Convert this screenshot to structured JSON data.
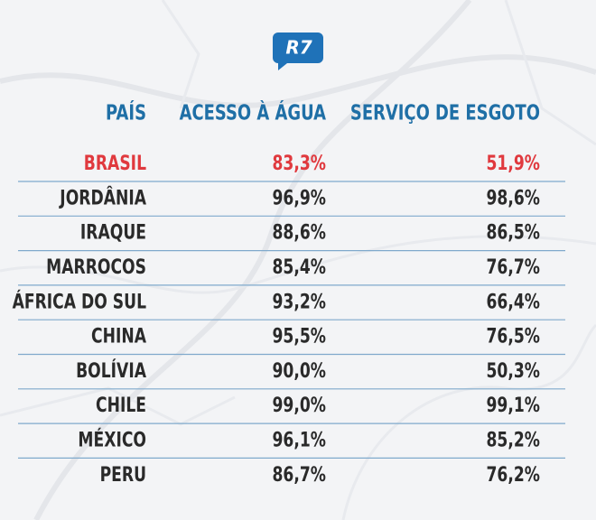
{
  "logo": "R7",
  "table": {
    "header": [
      "PAÍS",
      "ACESSO À ÁGUA",
      "SERVIÇO DE ESGOTO"
    ],
    "rows": [
      [
        "BRASIL",
        "83,3%",
        "51,9%"
      ],
      [
        "JORDÂNIA",
        "96,9%",
        "98,6%"
      ],
      [
        "IRAQUE",
        "88,6%",
        "86,5%"
      ],
      [
        "MARROCOS",
        "85,4%",
        "76,7%"
      ],
      [
        "ÁFRICA DO SUL",
        "93,2%",
        "66,4%"
      ],
      [
        "CHINA",
        "95,5%",
        "76,5%"
      ],
      [
        "BOLÍVIA",
        "90,0%",
        "50,3%"
      ],
      [
        "CHILE",
        "99,0%",
        "99,1%"
      ],
      [
        "MÉXICO",
        "96,1%",
        "85,2%"
      ],
      [
        "PERU",
        "86,7%",
        "76,2%"
      ]
    ]
  }
}
